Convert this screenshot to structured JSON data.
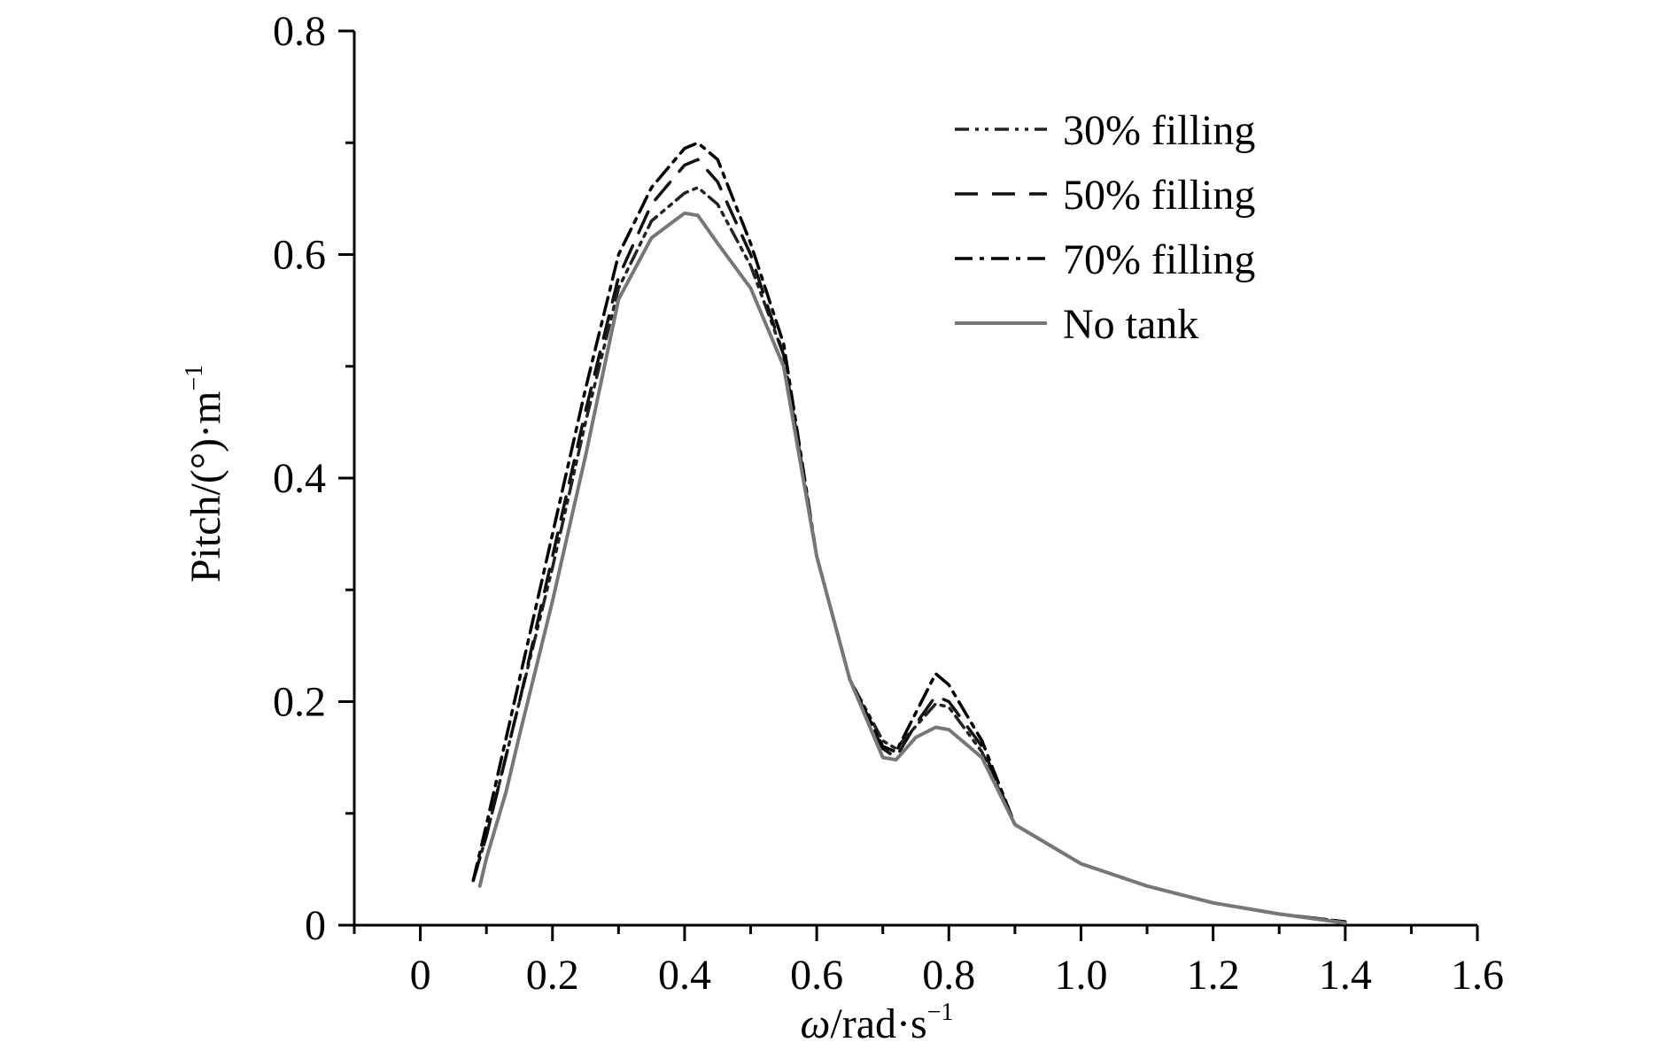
{
  "chart_data": {
    "type": "line",
    "title": "",
    "xlabel": {
      "var": "ω",
      "unit": "/rad·s",
      "sup": "−1"
    },
    "ylabel": {
      "base": "Pitch/(°)·m",
      "sup": "−1"
    },
    "xlim": [
      -0.1,
      1.6
    ],
    "ylim": [
      0,
      0.8
    ],
    "xticks": [
      0,
      0.2,
      0.4,
      0.6,
      0.8,
      1.0,
      1.2,
      1.4,
      1.6
    ],
    "xtick_labels": [
      "0",
      "0.2",
      "0.4",
      "0.6",
      "0.8",
      "1.0",
      "1.2",
      "1.4",
      "1.6"
    ],
    "yticks": [
      0,
      0.2,
      0.4,
      0.6,
      0.8
    ],
    "ytick_labels": [
      "0",
      "0.2",
      "0.4",
      "0.6",
      "0.8"
    ],
    "legend_position": "top-right",
    "grid": false,
    "series": [
      {
        "name": "30% filling",
        "style": "dash-dot-dot",
        "color": "#222222",
        "x": [
          0.08,
          0.1,
          0.15,
          0.2,
          0.25,
          0.3,
          0.35,
          0.4,
          0.42,
          0.45,
          0.5,
          0.55,
          0.6,
          0.65,
          0.7,
          0.72,
          0.75,
          0.78,
          0.8,
          0.85,
          0.9,
          1.0,
          1.1,
          1.2,
          1.3,
          1.4
        ],
        "y": [
          0.04,
          0.08,
          0.2,
          0.32,
          0.45,
          0.57,
          0.63,
          0.655,
          0.66,
          0.645,
          0.59,
          0.51,
          0.33,
          0.22,
          0.165,
          0.158,
          0.178,
          0.198,
          0.195,
          0.155,
          0.09,
          0.055,
          0.035,
          0.02,
          0.01,
          0.003
        ]
      },
      {
        "name": "50% filling",
        "style": "long-dash",
        "color": "#111111",
        "x": [
          0.08,
          0.1,
          0.15,
          0.2,
          0.25,
          0.3,
          0.35,
          0.4,
          0.42,
          0.45,
          0.5,
          0.55,
          0.6,
          0.65,
          0.7,
          0.72,
          0.75,
          0.78,
          0.8,
          0.85,
          0.9,
          1.0,
          1.1,
          1.2,
          1.3,
          1.4
        ],
        "y": [
          0.04,
          0.08,
          0.2,
          0.33,
          0.46,
          0.58,
          0.645,
          0.68,
          0.685,
          0.665,
          0.6,
          0.51,
          0.33,
          0.22,
          0.158,
          0.15,
          0.18,
          0.205,
          0.2,
          0.16,
          0.09,
          0.055,
          0.035,
          0.02,
          0.01,
          0.003
        ]
      },
      {
        "name": "70% filling",
        "style": "dash-dot",
        "color": "#000000",
        "x": [
          0.08,
          0.1,
          0.15,
          0.2,
          0.25,
          0.3,
          0.35,
          0.4,
          0.42,
          0.45,
          0.5,
          0.55,
          0.6,
          0.65,
          0.7,
          0.72,
          0.75,
          0.78,
          0.8,
          0.85,
          0.9,
          1.0,
          1.1,
          1.2,
          1.3,
          1.4
        ],
        "y": [
          0.04,
          0.09,
          0.22,
          0.35,
          0.48,
          0.6,
          0.66,
          0.695,
          0.7,
          0.685,
          0.61,
          0.52,
          0.33,
          0.22,
          0.16,
          0.155,
          0.19,
          0.225,
          0.215,
          0.165,
          0.09,
          0.055,
          0.035,
          0.02,
          0.01,
          0.003
        ]
      },
      {
        "name": "No tank",
        "style": "solid",
        "color": "#777777",
        "x": [
          0.09,
          0.1,
          0.13,
          0.15,
          0.2,
          0.25,
          0.3,
          0.35,
          0.4,
          0.42,
          0.45,
          0.5,
          0.55,
          0.6,
          0.65,
          0.7,
          0.72,
          0.75,
          0.78,
          0.8,
          0.85,
          0.9,
          1.0,
          1.1,
          1.2,
          1.3,
          1.4
        ],
        "y": [
          0.035,
          0.06,
          0.12,
          0.17,
          0.29,
          0.42,
          0.56,
          0.615,
          0.637,
          0.635,
          0.61,
          0.57,
          0.5,
          0.33,
          0.22,
          0.15,
          0.148,
          0.168,
          0.177,
          0.175,
          0.15,
          0.09,
          0.055,
          0.035,
          0.02,
          0.01,
          0.002
        ]
      }
    ]
  }
}
